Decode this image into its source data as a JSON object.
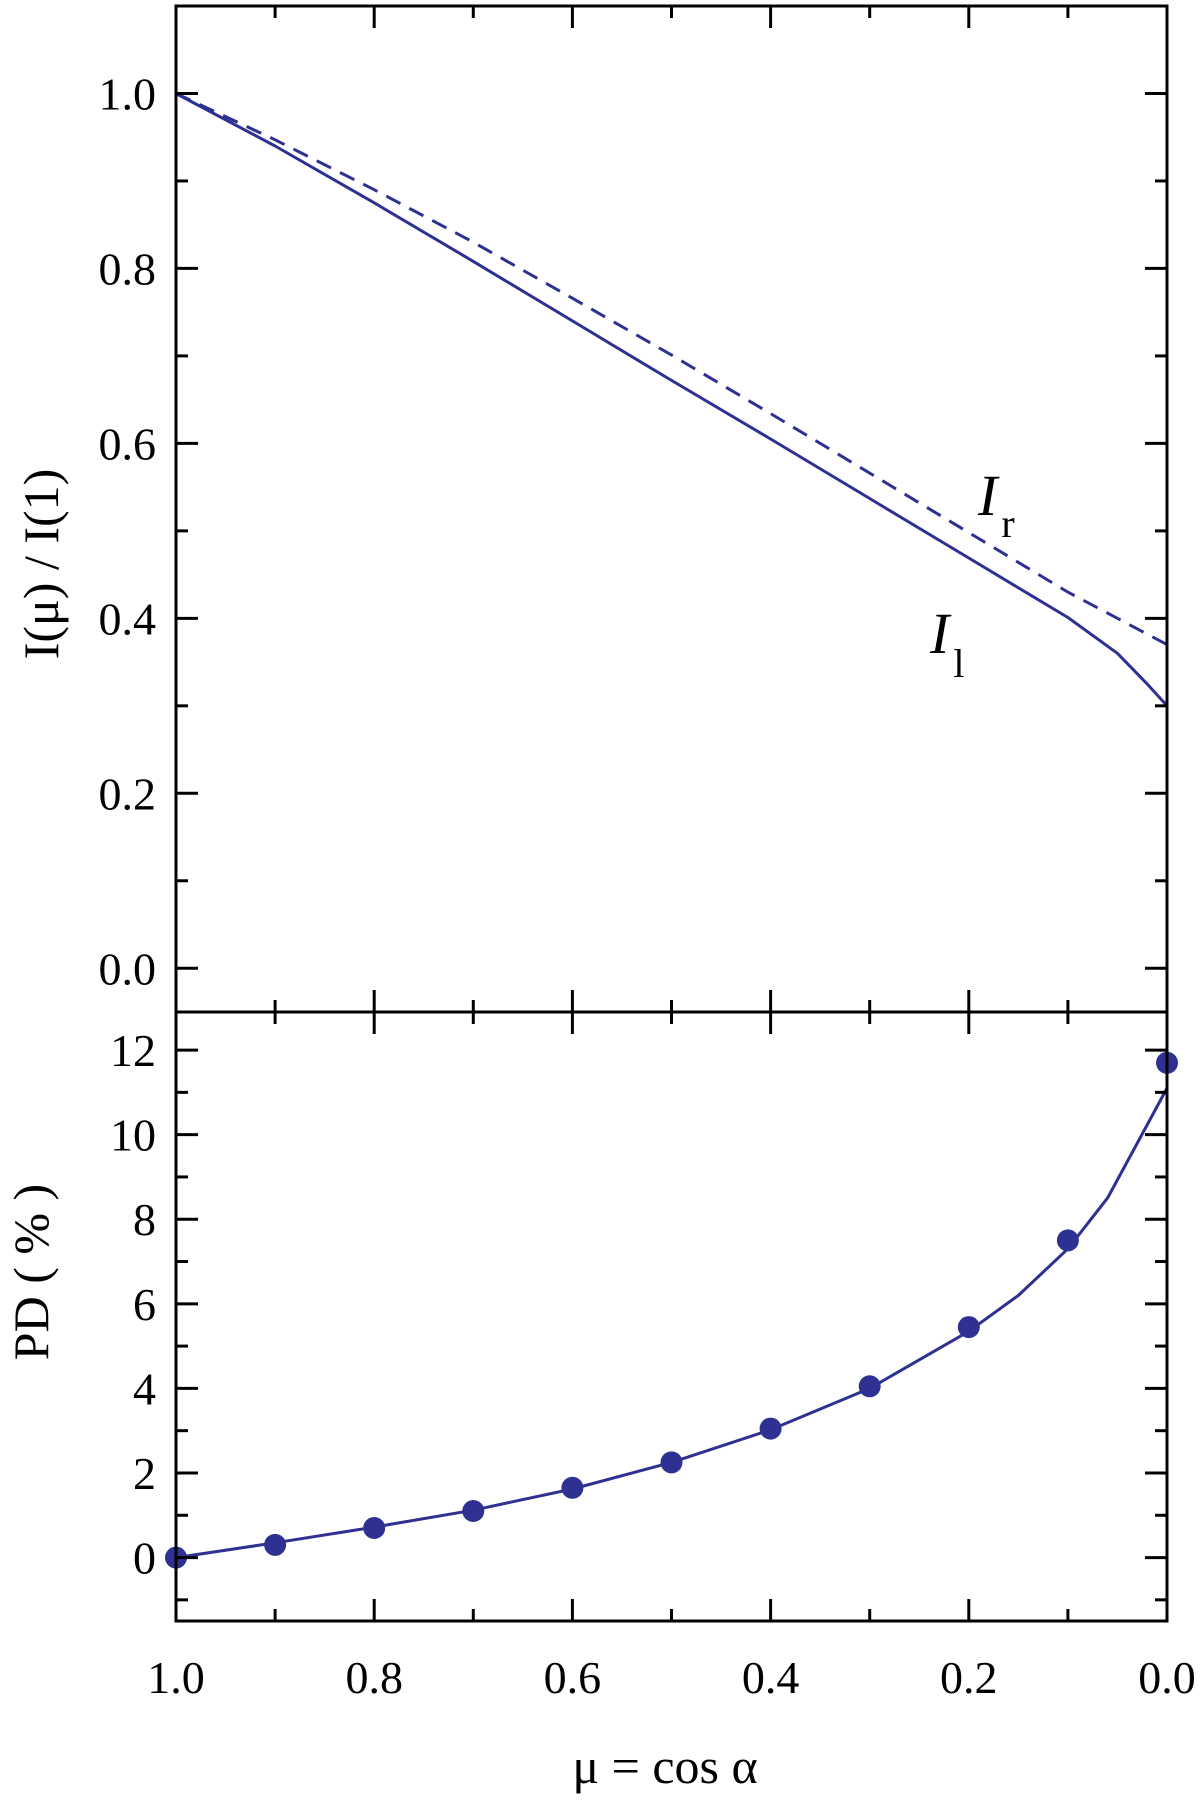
{
  "chart_data": [
    {
      "type": "line",
      "panel": "top",
      "ylabel": "I(μ) / I(1)",
      "xlim": [
        1.0,
        0.0
      ],
      "ylim": [
        -0.05,
        1.1
      ],
      "yticks": [
        "1.0",
        "0.8",
        "0.6",
        "0.4",
        "0.2",
        "0.0"
      ],
      "ytick_values": [
        1.0,
        0.8,
        0.6,
        0.4,
        0.2,
        0.0
      ],
      "series": [
        {
          "name": "I_r",
          "label_main": "I",
          "label_sub": "r",
          "style": "dashed",
          "x": [
            1.0,
            0.9,
            0.8,
            0.7,
            0.6,
            0.5,
            0.4,
            0.3,
            0.2,
            0.1,
            0.05,
            0.0
          ],
          "y": [
            1.0,
            0.947,
            0.89,
            0.83,
            0.766,
            0.701,
            0.634,
            0.566,
            0.498,
            0.43,
            0.4,
            0.37
          ]
        },
        {
          "name": "I_l",
          "label_main": "I",
          "label_sub": "l",
          "style": "solid",
          "x": [
            1.0,
            0.9,
            0.8,
            0.7,
            0.6,
            0.5,
            0.4,
            0.3,
            0.2,
            0.1,
            0.05,
            0.02,
            0.0
          ],
          "y": [
            1.0,
            0.94,
            0.875,
            0.808,
            0.74,
            0.672,
            0.605,
            0.537,
            0.469,
            0.401,
            0.36,
            0.325,
            0.3
          ]
        }
      ]
    },
    {
      "type": "line",
      "panel": "bottom",
      "xlabel": "μ = cos α",
      "ylabel": "PD ( % )",
      "xlim": [
        1.0,
        0.0
      ],
      "ylim": [
        -1.5,
        12.9
      ],
      "xticks": [
        "1.0",
        "0.8",
        "0.6",
        "0.4",
        "0.2",
        "0.0"
      ],
      "xtick_values": [
        1.0,
        0.8,
        0.6,
        0.4,
        0.2,
        0.0
      ],
      "yticks": [
        "12",
        "10",
        "8",
        "6",
        "4",
        "2",
        "0"
      ],
      "ytick_values": [
        12,
        10,
        8,
        6,
        4,
        2,
        0
      ],
      "series": [
        {
          "style": "solid",
          "x": [
            1.0,
            0.9,
            0.8,
            0.7,
            0.6,
            0.5,
            0.4,
            0.3,
            0.2,
            0.15,
            0.1,
            0.06,
            0.03,
            0.0
          ],
          "y": [
            0.0,
            0.35,
            0.72,
            1.12,
            1.62,
            2.25,
            3.02,
            4.0,
            5.35,
            6.2,
            7.3,
            8.5,
            9.8,
            11.1
          ]
        },
        {
          "style": "markers",
          "x": [
            1.0,
            0.9,
            0.8,
            0.7,
            0.6,
            0.5,
            0.4,
            0.3,
            0.2,
            0.1,
            0.0
          ],
          "y": [
            0.0,
            0.3,
            0.7,
            1.1,
            1.65,
            2.25,
            3.05,
            4.05,
            5.45,
            7.5,
            11.7
          ]
        }
      ]
    }
  ],
  "colors": {
    "curve": "#2e3192",
    "axis": "#000000"
  }
}
